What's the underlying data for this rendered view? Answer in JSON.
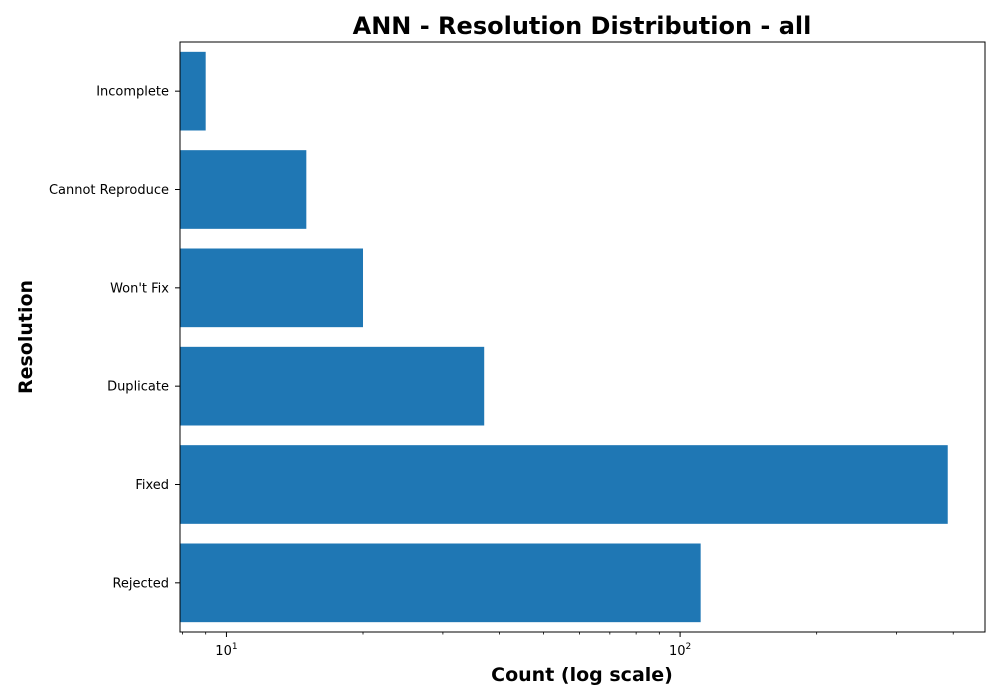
{
  "chart_data": {
    "type": "bar",
    "orientation": "horizontal",
    "title": "ANN - Resolution Distribution - all",
    "xlabel": "Count (log scale)",
    "ylabel": "Resolution",
    "x_scale": "log",
    "xlim": [
      7.9,
      470
    ],
    "x_ticks": [
      {
        "base": "10",
        "exp": "1",
        "value": 10
      },
      {
        "base": "10",
        "exp": "2",
        "value": 100
      }
    ],
    "categories": [
      "Rejected",
      "Fixed",
      "Duplicate",
      "Won't Fix",
      "Cannot Reproduce",
      "Incomplete"
    ],
    "values": [
      111,
      389,
      37,
      20,
      15,
      9
    ],
    "bar_color": "#1f77b4",
    "grid": false,
    "legend": "none"
  }
}
